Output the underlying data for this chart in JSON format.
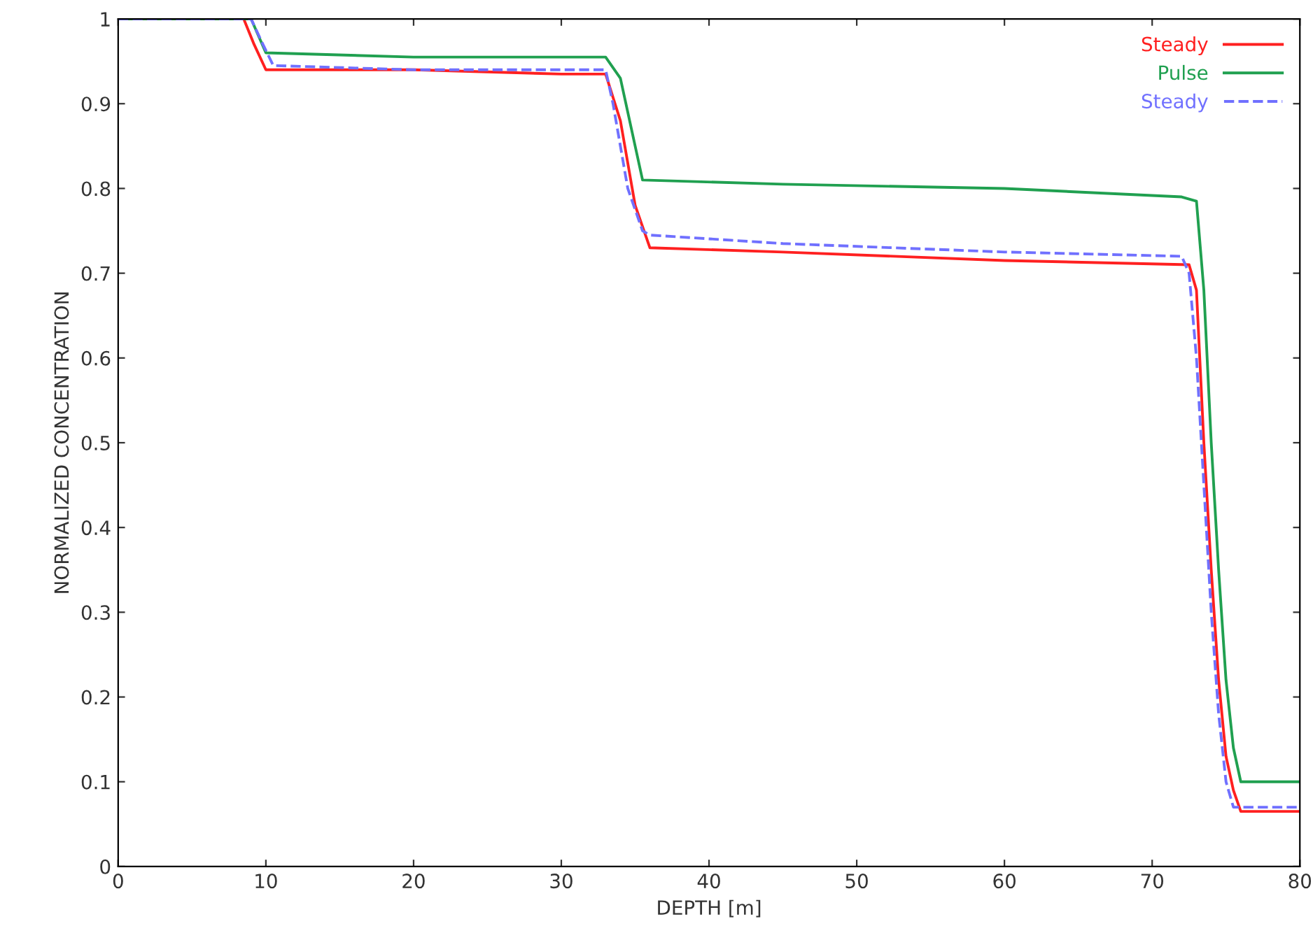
{
  "chart_data": {
    "type": "line",
    "xlabel": "DEPTH [m]",
    "ylabel": "NORMALIZED CONCENTRATION",
    "xlim": [
      0,
      80
    ],
    "ylim": [
      0,
      1
    ],
    "xticks": [
      0,
      10,
      20,
      30,
      40,
      50,
      60,
      70,
      80
    ],
    "yticks": [
      0,
      0.1,
      0.2,
      0.3,
      0.4,
      0.5,
      0.6,
      0.7,
      0.8,
      0.9,
      1
    ],
    "grid": false,
    "legend": "top right",
    "marker": "none",
    "series": [
      {
        "name": "Steady",
        "color": "#ff2020",
        "line_style": "solid",
        "x": [
          0,
          8.5,
          9.2,
          10,
          20,
          30,
          33,
          34,
          35,
          36,
          45,
          60,
          72.5,
          73,
          73.5,
          74,
          74.5,
          75,
          75.5,
          76,
          80
        ],
        "values": [
          1,
          1,
          0.97,
          0.94,
          0.94,
          0.935,
          0.935,
          0.88,
          0.78,
          0.73,
          0.725,
          0.715,
          0.71,
          0.68,
          0.5,
          0.35,
          0.22,
          0.13,
          0.09,
          0.065,
          0.065
        ]
      },
      {
        "name": "Pulse",
        "color": "#20a050",
        "line_style": "solid",
        "x": [
          0,
          9,
          9.5,
          10,
          20,
          33,
          34,
          35,
          35.5,
          45,
          60,
          72,
          73,
          73.5,
          74,
          74.5,
          75,
          75.5,
          76,
          80
        ],
        "values": [
          1,
          1,
          0.98,
          0.96,
          0.955,
          0.955,
          0.93,
          0.85,
          0.81,
          0.805,
          0.8,
          0.79,
          0.785,
          0.68,
          0.5,
          0.35,
          0.22,
          0.14,
          0.1,
          0.1
        ]
      },
      {
        "name": "Steady",
        "color": "#7070ff",
        "line_style": "dashed",
        "x": [
          0,
          9,
          9.8,
          10.5,
          20,
          33,
          33.5,
          34.5,
          35.5,
          36,
          45,
          60,
          72,
          72.5,
          73,
          73.5,
          74,
          74.5,
          75,
          75.5,
          80
        ],
        "values": [
          1,
          1,
          0.97,
          0.945,
          0.94,
          0.94,
          0.9,
          0.8,
          0.75,
          0.745,
          0.735,
          0.725,
          0.72,
          0.7,
          0.6,
          0.45,
          0.3,
          0.18,
          0.1,
          0.07,
          0.07
        ]
      }
    ]
  }
}
